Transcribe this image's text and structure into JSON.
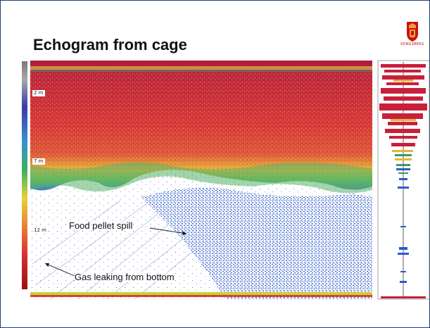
{
  "slide": {
    "title": "Echogram from cage"
  },
  "logo": {
    "icon": "kongsberg-shield-icon",
    "text": "KONGSBERG",
    "color": "#cc1111"
  },
  "echogram": {
    "depth_labels": [
      "2 m",
      "7 m",
      "12 m"
    ],
    "annotations": {
      "food_pellet": "Food pellet spill",
      "gas_leak": "Gas leaking from bottom"
    },
    "colors": {
      "surface": "#b8203a",
      "dense": "#d93a3a",
      "medium": "#e8c13a",
      "light": "#3cae6b",
      "sparse": "#2a4fc6",
      "bottom": "#c8d432"
    }
  }
}
